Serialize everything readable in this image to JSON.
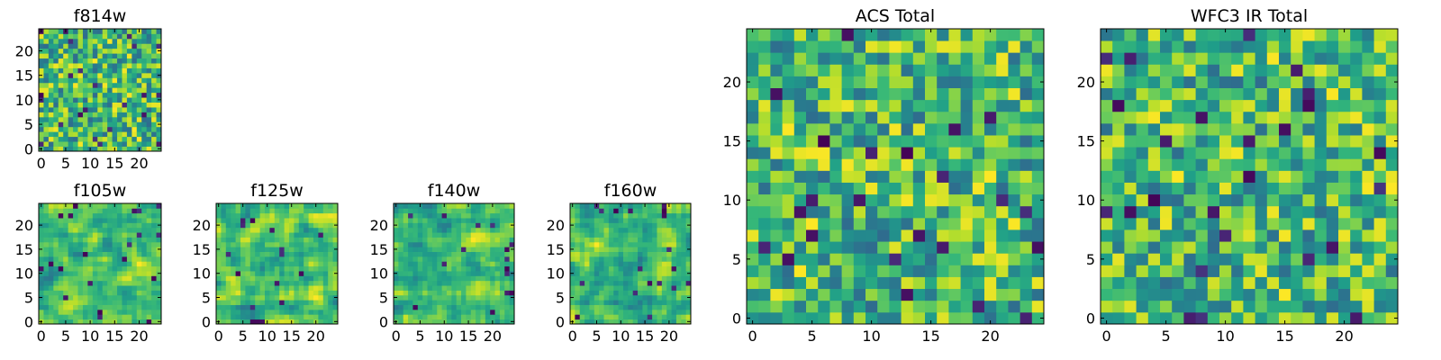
{
  "chart_data": [
    {
      "type": "heatmap",
      "title": "f814w",
      "grid_size": 25,
      "colormap": "viridis",
      "xticks": [
        "0",
        "5",
        "10",
        "15",
        "20"
      ],
      "yticks": [
        "0",
        "5",
        "10",
        "15",
        "20"
      ],
      "xlim": [
        0,
        25
      ],
      "ylim": [
        0,
        25
      ],
      "seed": 814,
      "spatial_scale": 1,
      "pixel_values": "noise, approx. 0-1, not individually legible"
    },
    {
      "type": "heatmap",
      "title": "f105w",
      "grid_size": 25,
      "colormap": "viridis",
      "xticks": [
        "0",
        "5",
        "10",
        "15",
        "20"
      ],
      "yticks": [
        "0",
        "5",
        "10",
        "15",
        "20"
      ],
      "xlim": [
        0,
        25
      ],
      "ylim": [
        0,
        25
      ],
      "seed": 105,
      "spatial_scale": 2,
      "pixel_values": "noise, approx. 0-1, not individually legible"
    },
    {
      "type": "heatmap",
      "title": "f125w",
      "grid_size": 25,
      "colormap": "viridis",
      "xticks": [
        "0",
        "5",
        "10",
        "15",
        "20"
      ],
      "yticks": [
        "0",
        "5",
        "10",
        "15",
        "20"
      ],
      "xlim": [
        0,
        25
      ],
      "ylim": [
        0,
        25
      ],
      "seed": 125,
      "spatial_scale": 2,
      "pixel_values": "noise, approx. 0-1, not individually legible"
    },
    {
      "type": "heatmap",
      "title": "f140w",
      "grid_size": 25,
      "colormap": "viridis",
      "xticks": [
        "0",
        "5",
        "10",
        "15",
        "20"
      ],
      "yticks": [
        "0",
        "5",
        "10",
        "15",
        "20"
      ],
      "xlim": [
        0,
        25
      ],
      "ylim": [
        0,
        25
      ],
      "seed": 140,
      "spatial_scale": 2,
      "pixel_values": "noise, approx. 0-1, not individually legible"
    },
    {
      "type": "heatmap",
      "title": "f160w",
      "grid_size": 25,
      "colormap": "viridis",
      "xticks": [
        "0",
        "5",
        "10",
        "15",
        "20"
      ],
      "yticks": [
        "0",
        "5",
        "10",
        "15",
        "20"
      ],
      "xlim": [
        0,
        25
      ],
      "ylim": [
        0,
        25
      ],
      "seed": 160,
      "spatial_scale": 2,
      "pixel_values": "noise, approx. 0-1, not individually legible"
    },
    {
      "type": "heatmap",
      "title": "ACS Total",
      "grid_size": 25,
      "colormap": "viridis",
      "xticks": [
        "0",
        "5",
        "10",
        "15",
        "20"
      ],
      "yticks": [
        "0",
        "5",
        "10",
        "15",
        "20"
      ],
      "xlim": [
        0,
        25
      ],
      "ylim": [
        0,
        25
      ],
      "seed": 21,
      "spatial_scale": 1,
      "pixel_values": "noise, mostly 0.5-1 with sparse low pixels"
    },
    {
      "type": "heatmap",
      "title": "WFC3 IR Total",
      "grid_size": 25,
      "colormap": "viridis",
      "xticks": [
        "0",
        "5",
        "10",
        "15",
        "20"
      ],
      "yticks": [
        "0",
        "5",
        "10",
        "15",
        "20"
      ],
      "xlim": [
        0,
        25
      ],
      "ylim": [
        0,
        25
      ],
      "seed": 33,
      "spatial_scale": 1,
      "pixel_values": "noise, mostly 0.5-1 with sparse low pixels"
    }
  ]
}
